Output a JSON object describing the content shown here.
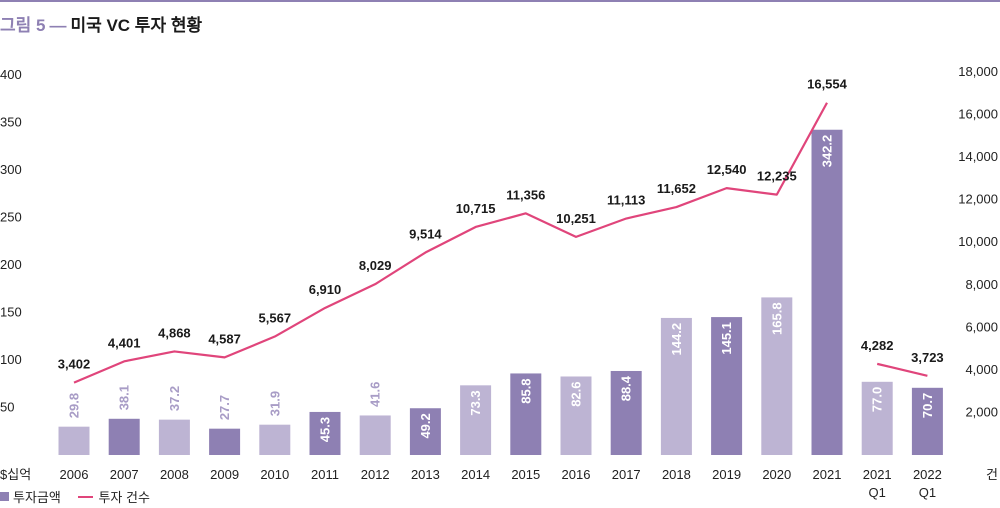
{
  "title": {
    "fig": "그림 5",
    "dash": "—",
    "main": "미국 VC 투자 현황"
  },
  "colors": {
    "accent": "#8e80b3",
    "bar_dark": "#8e80b3",
    "bar_light": "#bdb4d3",
    "line": "#e0457b",
    "label_dark": "#ffffff",
    "label_light": "#ffffff",
    "label_outside": "#a89cc6"
  },
  "legend": {
    "bar_label": "투자금액",
    "line_label": "투자 건수"
  },
  "chart_data": {
    "type": "bar",
    "categories": [
      "2006",
      "2007",
      "2008",
      "2009",
      "2010",
      "2011",
      "2012",
      "2013",
      "2014",
      "2015",
      "2016",
      "2017",
      "2018",
      "2019",
      "2020",
      "2021",
      "2021 Q1",
      "2022 Q1"
    ],
    "series": [
      {
        "name": "투자금액",
        "type": "bar",
        "axis": "left",
        "values": [
          29.8,
          38.1,
          37.2,
          27.7,
          31.9,
          45.3,
          41.6,
          49.2,
          73.3,
          85.8,
          82.6,
          88.4,
          144.2,
          145.1,
          165.8,
          342.2,
          77.0,
          70.7
        ],
        "value_labels": [
          "29.8",
          "38.1",
          "37.2",
          "27.7",
          "31.9",
          "45.3",
          "41.6",
          "49.2",
          "73.3",
          "85.8",
          "82.6",
          "88.4",
          "144.2",
          "145.1",
          "165.8",
          "342.2",
          "77.0",
          "70.7"
        ],
        "shade": [
          "light",
          "dark",
          "light",
          "dark",
          "light",
          "dark",
          "light",
          "dark",
          "light",
          "dark",
          "light",
          "dark",
          "light",
          "dark",
          "light",
          "dark",
          "light",
          "dark"
        ]
      },
      {
        "name": "투자 건수",
        "type": "line",
        "axis": "right",
        "values": [
          3402,
          4401,
          4868,
          4587,
          5567,
          6910,
          8029,
          9514,
          10715,
          11356,
          10251,
          11113,
          11652,
          12540,
          12235,
          16554,
          4282,
          3723
        ],
        "value_labels": [
          "3,402",
          "4,401",
          "4,868",
          "4,587",
          "5,567",
          "6,910",
          "8,029",
          "9,514",
          "10,715",
          "11,356",
          "10,251",
          "11,113",
          "11,652",
          "12,540",
          "12,235",
          "16,554",
          "4,282",
          "3,723"
        ],
        "segments": [
          [
            0,
            15
          ],
          [
            16,
            17
          ]
        ]
      }
    ],
    "y_left": {
      "unit": "$십억",
      "ylim": [
        0,
        400
      ],
      "ticks": [
        50,
        100,
        150,
        200,
        250,
        300,
        350,
        400
      ]
    },
    "y_right": {
      "unit": "건",
      "ylim": [
        0,
        18000
      ],
      "ticks": [
        "2,000",
        "4,000",
        "6,000",
        "8,000",
        "10,000",
        "12,000",
        "14,000",
        "16,000",
        "18,000"
      ],
      "tick_values": [
        2000,
        4000,
        6000,
        8000,
        10000,
        12000,
        14000,
        16000,
        18000
      ]
    },
    "grid": false,
    "legend_position": "bottom-left"
  }
}
